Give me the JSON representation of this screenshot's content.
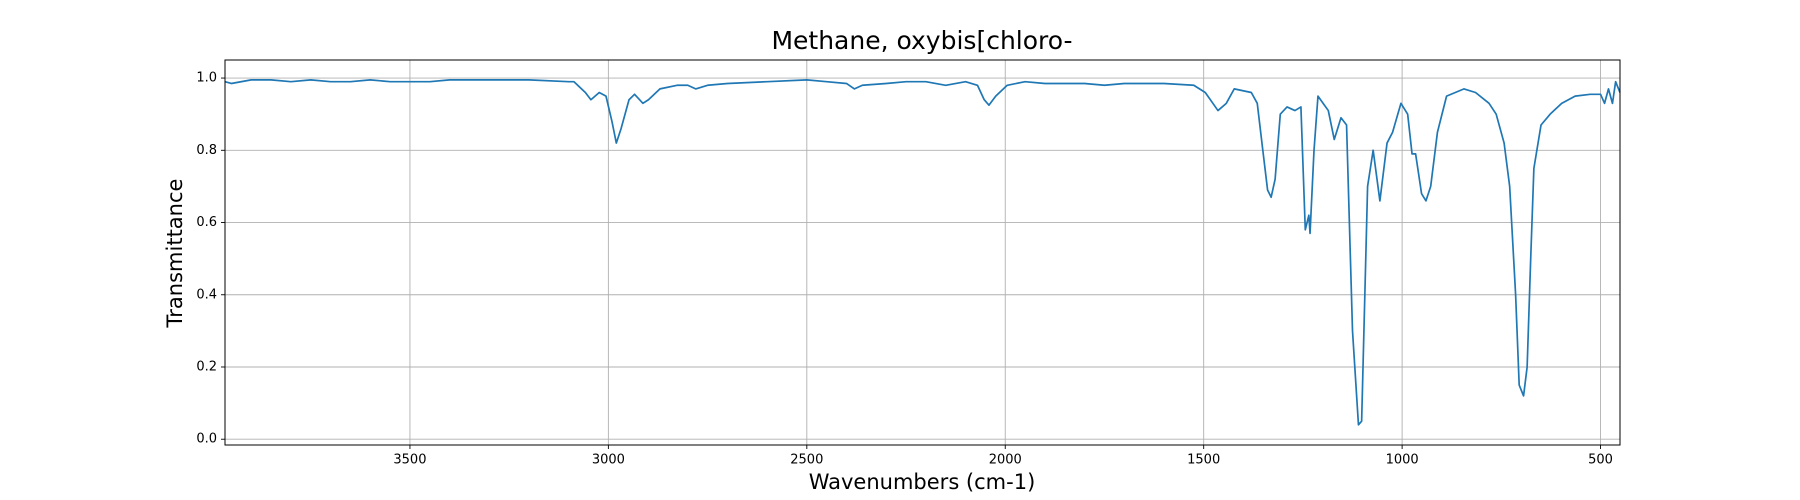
{
  "chart_data": {
    "type": "line",
    "title": "Methane, oxybis[chloro-",
    "x_label": "Wavenumbers (cm-1)",
    "y_label": "Transmittance",
    "color": "#1f77b4",
    "x": [
      3966,
      3950,
      3900,
      3850,
      3800,
      3750,
      3700,
      3650,
      3600,
      3550,
      3500,
      3450,
      3400,
      3300,
      3200,
      3100,
      3087,
      3058,
      3044,
      3023,
      3006,
      2991,
      2980,
      2968,
      2948,
      2934,
      2913,
      2899,
      2870,
      2827,
      2800,
      2780,
      2750,
      2700,
      2600,
      2500,
      2450,
      2400,
      2380,
      2360,
      2300,
      2250,
      2200,
      2150,
      2100,
      2070,
      2053,
      2041,
      2024,
      1995,
      1950,
      1900,
      1800,
      1750,
      1700,
      1600,
      1525,
      1496,
      1464,
      1443,
      1423,
      1380,
      1365,
      1351,
      1339,
      1330,
      1320,
      1307,
      1290,
      1270,
      1255,
      1244,
      1235,
      1232,
      1222,
      1212,
      1199,
      1186,
      1171,
      1154,
      1140,
      1125,
      1110,
      1102,
      1087,
      1073,
      1056,
      1038,
      1024,
      1003,
      986,
      975,
      966,
      951,
      940,
      928,
      911,
      888,
      844,
      815,
      781,
      763,
      743,
      729,
      714,
      705,
      694,
      685,
      676,
      668,
      650,
      627,
      598,
      564,
      526,
      500,
      490,
      480,
      470,
      462,
      451
    ],
    "values": [
      0.99,
      0.985,
      0.995,
      0.995,
      0.99,
      0.995,
      0.99,
      0.99,
      0.995,
      0.99,
      0.99,
      0.99,
      0.995,
      0.995,
      0.995,
      0.99,
      0.99,
      0.96,
      0.94,
      0.96,
      0.95,
      0.88,
      0.82,
      0.86,
      0.94,
      0.955,
      0.93,
      0.94,
      0.97,
      0.98,
      0.98,
      0.97,
      0.98,
      0.985,
      0.99,
      0.995,
      0.99,
      0.985,
      0.97,
      0.98,
      0.985,
      0.99,
      0.99,
      0.98,
      0.99,
      0.98,
      0.94,
      0.925,
      0.95,
      0.98,
      0.99,
      0.985,
      0.985,
      0.98,
      0.985,
      0.985,
      0.98,
      0.96,
      0.91,
      0.93,
      0.97,
      0.96,
      0.93,
      0.8,
      0.69,
      0.67,
      0.72,
      0.9,
      0.92,
      0.91,
      0.92,
      0.58,
      0.62,
      0.57,
      0.8,
      0.95,
      0.93,
      0.91,
      0.83,
      0.89,
      0.87,
      0.3,
      0.04,
      0.05,
      0.7,
      0.8,
      0.66,
      0.82,
      0.85,
      0.93,
      0.9,
      0.79,
      0.79,
      0.68,
      0.66,
      0.7,
      0.85,
      0.95,
      0.97,
      0.96,
      0.93,
      0.9,
      0.82,
      0.7,
      0.4,
      0.15,
      0.12,
      0.2,
      0.5,
      0.75,
      0.87,
      0.9,
      0.93,
      0.95,
      0.955,
      0.955,
      0.93,
      0.97,
      0.93,
      0.99,
      0.96
    ],
    "xlim": [
      3966,
      451
    ],
    "ylim": [
      -0.016,
      1.05
    ],
    "xticks": [
      3500,
      3000,
      2500,
      2000,
      1500,
      1000,
      500
    ],
    "yticks": [
      {
        "value": 0,
        "label": "0.0"
      },
      0.2,
      0.4,
      0.6,
      0.8,
      {
        "value": 1,
        "label": "1.0"
      }
    ],
    "grid": true
  }
}
